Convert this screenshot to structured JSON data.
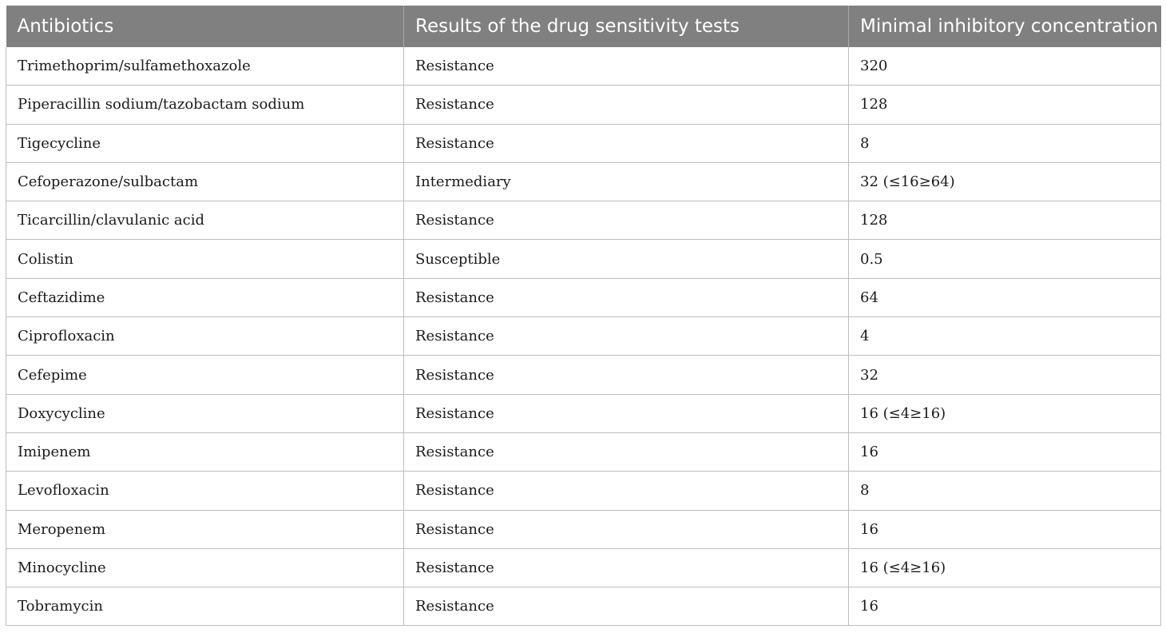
{
  "table": {
    "headers": [
      "Antibiotics",
      "Results of the drug sensitivity tests",
      "Minimal inhibitory concentration"
    ],
    "rows": [
      [
        "Trimethoprim/sulfamethoxazole",
        "Resistance",
        "320"
      ],
      [
        "Piperacillin sodium/tazobactam sodium",
        "Resistance",
        "128"
      ],
      [
        "Tigecycline",
        "Resistance",
        "8"
      ],
      [
        "Cefoperazone/sulbactam",
        "Intermediary",
        "32 (≤16≥64)"
      ],
      [
        "Ticarcillin/clavulanic acid",
        "Resistance",
        "128"
      ],
      [
        "Colistin",
        "Susceptible",
        "0.5"
      ],
      [
        "Ceftazidime",
        "Resistance",
        "64"
      ],
      [
        "Ciprofloxacin",
        "Resistance",
        "4"
      ],
      [
        "Cefepime",
        "Resistance",
        "32"
      ],
      [
        "Doxycycline",
        "Resistance",
        "16 (≤4≥16)"
      ],
      [
        "Imipenem",
        "Resistance",
        "16"
      ],
      [
        "Levofloxacin",
        "Resistance",
        "8"
      ],
      [
        "Meropenem",
        "Resistance",
        "16"
      ],
      [
        "Minocycline",
        "Resistance",
        "16 (≤4≥16)"
      ],
      [
        "Tobramycin",
        "Resistance",
        "16"
      ]
    ]
  }
}
